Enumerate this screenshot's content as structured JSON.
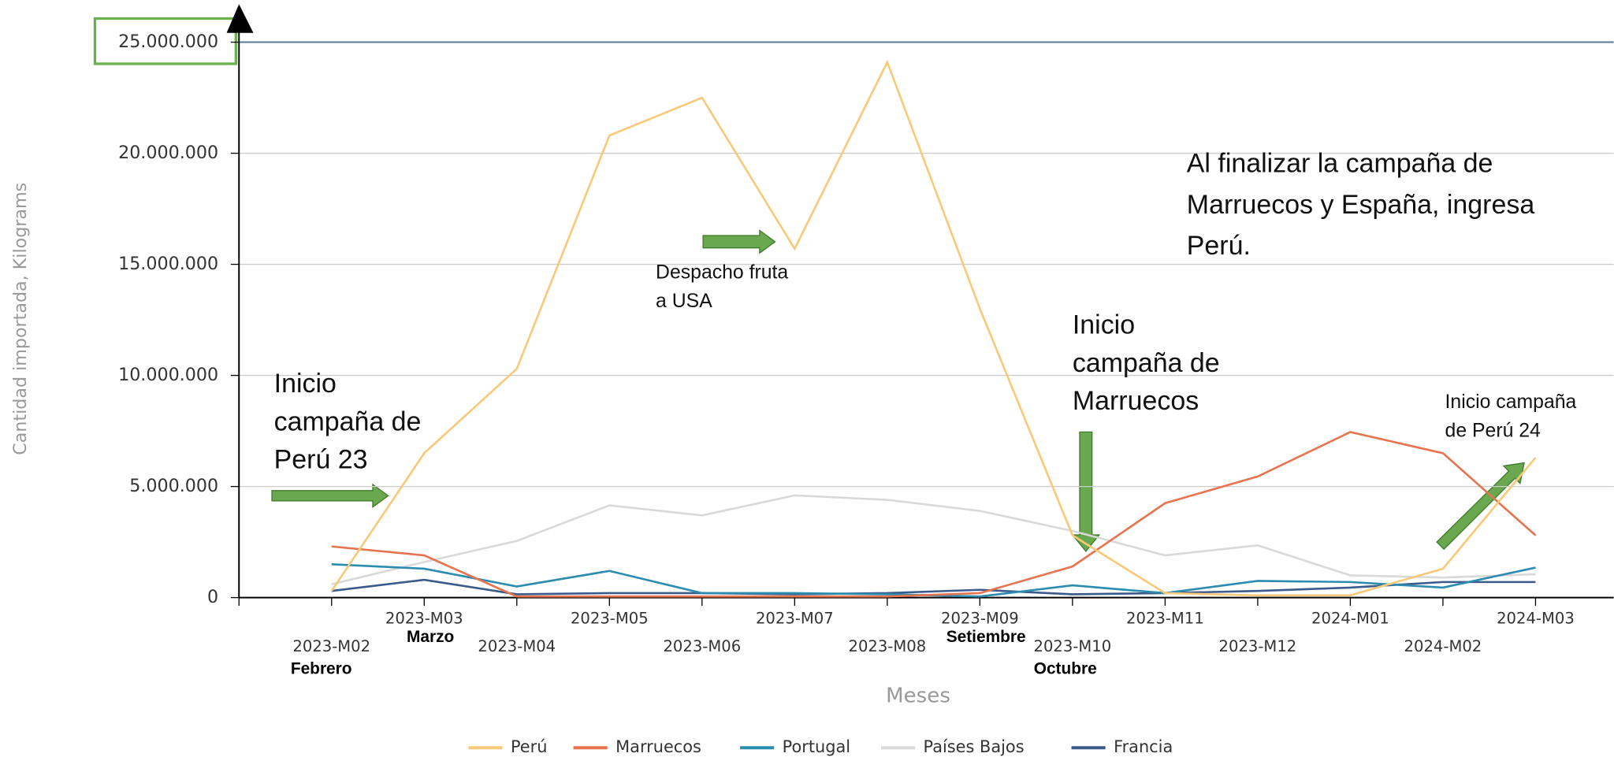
{
  "chart_data": {
    "type": "line",
    "y_label": "Cantidad importada, Kilograms",
    "x_label": "Meses",
    "categories": [
      "2023-M02",
      "2023-M03",
      "2023-M04",
      "2023-M05",
      "2023-M06",
      "2023-M07",
      "2023-M08",
      "2023-M09",
      "2023-M10",
      "2023-M11",
      "2023-M12",
      "2024-M01",
      "2024-M02",
      "2024-M03"
    ],
    "series": [
      {
        "name": "Perú",
        "color": "#f9c97a",
        "values": [
          300000,
          6500000,
          10300000,
          20800000,
          22500000,
          15700000,
          24100000,
          13000000,
          2800000,
          200000,
          100000,
          100000,
          1300000,
          6300000
        ]
      },
      {
        "name": "Marruecos",
        "color": "#e8734f",
        "values": [
          2300000,
          1900000,
          50000,
          50000,
          50000,
          50000,
          50000,
          200000,
          1400000,
          4250000,
          5450000,
          7450000,
          6500000,
          2800000
        ]
      },
      {
        "name": "Portugal",
        "color": "#2b8cb0",
        "values": [
          1500000,
          1300000,
          500000,
          1200000,
          200000,
          200000,
          150000,
          50000,
          550000,
          200000,
          750000,
          700000,
          450000,
          1350000
        ]
      },
      {
        "name": "Países Bajos",
        "color": "#d9d9d9",
        "values": [
          600000,
          1600000,
          2550000,
          4150000,
          3700000,
          4600000,
          4400000,
          3900000,
          3000000,
          1900000,
          2350000,
          1000000,
          900000,
          1050000
        ]
      },
      {
        "name": "Francia",
        "color": "#3b5b8c",
        "values": [
          300000,
          800000,
          150000,
          200000,
          200000,
          150000,
          200000,
          350000,
          150000,
          200000,
          300000,
          450000,
          700000,
          700000
        ]
      }
    ],
    "ylim": [
      0,
      25000000
    ],
    "yticks": [
      0,
      {
        "value": 5000000,
        "label": "5.000.000"
      },
      {
        "value": 10000000,
        "label": "10.000.000"
      },
      {
        "value": 15000000,
        "label": "15.000.000"
      },
      {
        "value": 20000000,
        "label": "20.000.000"
      },
      {
        "value": 25000000,
        "label": "25.000.000"
      }
    ],
    "grid": true,
    "legend": "bottom",
    "month_notes": [
      "Febrero",
      "Marzo",
      "Setiembre",
      "Octubre"
    ],
    "annotations": [
      {
        "lines": [
          "Inicio",
          "campaña de",
          "Perú 23"
        ]
      },
      {
        "lines": [
          "Despacho fruta",
          "a USA"
        ]
      },
      {
        "lines": [
          "Inicio",
          "campaña de",
          "Marruecos"
        ]
      },
      {
        "lines": [
          "Al finalizar la campaña de",
          "Marruecos y España, ingresa",
          "Perú."
        ]
      },
      {
        "lines": [
          "Inicio campaña",
          "de Perú 24"
        ]
      }
    ]
  }
}
